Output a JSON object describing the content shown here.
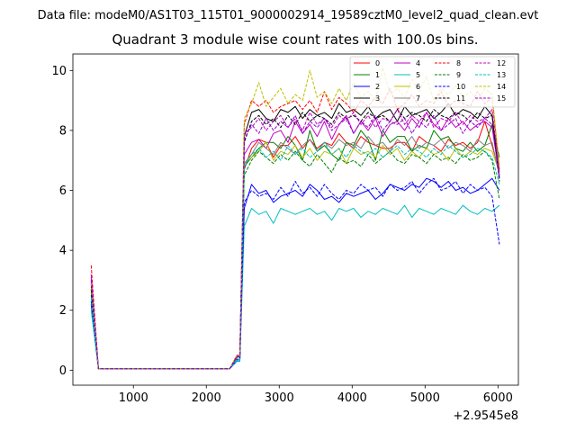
{
  "figure": {
    "suptitle": "Data file: modeM0/AS1T03_115T01_9000002914_19589cztM0_level2_quad_clean.evt"
  },
  "chart_data": {
    "type": "line",
    "title": "Quadrant 3 module wise count rates with 100.0s bins.",
    "xlabel": "",
    "ylabel": "",
    "x_offset_label": "+2.9545e8",
    "xlim": [
      170,
      6280
    ],
    "ylim": [
      -0.5,
      10.55
    ],
    "xticks": [
      1000,
      2000,
      3000,
      4000,
      5000,
      6000
    ],
    "yticks": [
      0,
      2,
      4,
      6,
      8,
      10
    ],
    "grid": false,
    "legend_position": "top-right",
    "x": [
      420,
      520,
      620,
      720,
      820,
      920,
      1020,
      1120,
      1220,
      1320,
      1420,
      1520,
      1620,
      1720,
      1820,
      1920,
      2020,
      2120,
      2220,
      2320,
      2420,
      2460,
      2520,
      2620,
      2720,
      2820,
      2920,
      3020,
      3120,
      3220,
      3320,
      3420,
      3520,
      3620,
      3720,
      3820,
      3920,
      4020,
      4120,
      4220,
      4320,
      4420,
      4520,
      4620,
      4720,
      4820,
      4920,
      5020,
      5120,
      5220,
      5320,
      5420,
      5520,
      5620,
      5720,
      5820,
      5920,
      6020
    ],
    "series": [
      {
        "name": "0",
        "color": "#ff0000",
        "dash": "solid",
        "values": [
          3.0,
          0.05,
          0.05,
          0.05,
          0.05,
          0.05,
          0.05,
          0.05,
          0.05,
          0.05,
          0.05,
          0.05,
          0.05,
          0.05,
          0.05,
          0.05,
          0.05,
          0.05,
          0.05,
          0.05,
          0.45,
          0.45,
          6.7,
          7.4,
          7.7,
          7.6,
          7.1,
          7.5,
          7.5,
          7.8,
          7.4,
          7.7,
          7.4,
          7.6,
          7.5,
          7.9,
          7.6,
          7.4,
          7.8,
          7.6,
          7.5,
          7.4,
          7.4,
          7.6,
          7.6,
          7.3,
          7.8,
          7.6,
          7.5,
          7.3,
          7.7,
          7.5,
          7.6,
          7.4,
          7.6,
          8.3,
          7.5,
          6.6
        ]
      },
      {
        "name": "1",
        "color": "#008000",
        "dash": "solid",
        "values": [
          2.8,
          0.05,
          0.05,
          0.05,
          0.05,
          0.05,
          0.05,
          0.05,
          0.05,
          0.05,
          0.05,
          0.05,
          0.05,
          0.05,
          0.05,
          0.05,
          0.05,
          0.05,
          0.05,
          0.05,
          0.4,
          0.4,
          6.8,
          7.1,
          7.4,
          7.6,
          7.6,
          7.4,
          7.8,
          7.5,
          7.0,
          8.0,
          7.3,
          7.5,
          7.2,
          7.0,
          7.6,
          7.5,
          8.0,
          7.7,
          7.0,
          8.0,
          7.6,
          7.8,
          7.8,
          7.3,
          7.5,
          7.4,
          8.0,
          7.7,
          7.8,
          7.4,
          7.3,
          7.6,
          7.3,
          7.5,
          8.2,
          7.1
        ]
      },
      {
        "name": "2",
        "color": "#0000ff",
        "dash": "solid",
        "values": [
          2.2,
          0.05,
          0.05,
          0.05,
          0.05,
          0.05,
          0.05,
          0.05,
          0.05,
          0.05,
          0.05,
          0.05,
          0.05,
          0.05,
          0.05,
          0.05,
          0.05,
          0.05,
          0.05,
          0.05,
          0.3,
          0.3,
          5.4,
          6.2,
          5.9,
          6.0,
          5.6,
          5.8,
          5.9,
          6.0,
          5.8,
          6.2,
          6.0,
          5.7,
          5.8,
          5.6,
          5.9,
          5.8,
          5.9,
          6.0,
          5.7,
          5.9,
          6.2,
          6.1,
          6.0,
          6.2,
          6.1,
          6.4,
          6.3,
          6.1,
          6.3,
          6.0,
          6.1,
          5.9,
          6.0,
          6.2,
          6.4,
          6.0
        ]
      },
      {
        "name": "3",
        "color": "#000000",
        "dash": "solid",
        "values": [
          2.9,
          0.05,
          0.05,
          0.05,
          0.05,
          0.05,
          0.05,
          0.05,
          0.05,
          0.05,
          0.05,
          0.05,
          0.05,
          0.05,
          0.05,
          0.05,
          0.05,
          0.05,
          0.05,
          0.05,
          0.45,
          0.45,
          7.8,
          8.6,
          8.7,
          8.4,
          8.3,
          8.7,
          8.6,
          8.8,
          8.4,
          8.7,
          8.5,
          8.6,
          8.4,
          8.9,
          8.6,
          8.7,
          8.5,
          8.8,
          8.4,
          8.6,
          8.7,
          8.3,
          8.8,
          8.5,
          8.6,
          8.7,
          8.4,
          8.6,
          8.9,
          8.5,
          8.7,
          8.6,
          8.4,
          8.8,
          8.5,
          6.4
        ]
      },
      {
        "name": "4",
        "color": "#c000c0",
        "dash": "solid",
        "values": [
          3.1,
          0.05,
          0.05,
          0.05,
          0.05,
          0.05,
          0.05,
          0.05,
          0.05,
          0.05,
          0.05,
          0.05,
          0.05,
          0.05,
          0.05,
          0.05,
          0.05,
          0.05,
          0.05,
          0.05,
          0.5,
          0.5,
          7.2,
          7.6,
          7.7,
          7.4,
          7.9,
          8.0,
          7.6,
          8.3,
          7.9,
          8.2,
          7.8,
          8.3,
          7.7,
          8.2,
          8.5,
          7.9,
          8.3,
          8.0,
          8.4,
          7.8,
          8.2,
          8.3,
          8.0,
          8.4,
          8.1,
          8.6,
          8.2,
          8.0,
          8.4,
          8.1,
          8.3,
          8.0,
          8.2,
          8.3,
          8.1,
          6.5
        ]
      },
      {
        "name": "5",
        "color": "#00bfbf",
        "dash": "solid",
        "values": [
          2.0,
          0.05,
          0.05,
          0.05,
          0.05,
          0.05,
          0.05,
          0.05,
          0.05,
          0.05,
          0.05,
          0.05,
          0.05,
          0.05,
          0.05,
          0.05,
          0.05,
          0.05,
          0.05,
          0.05,
          0.3,
          0.3,
          4.8,
          5.4,
          5.2,
          5.3,
          4.9,
          5.4,
          5.3,
          5.2,
          5.3,
          5.4,
          5.2,
          5.3,
          5.0,
          5.4,
          5.3,
          5.4,
          5.1,
          5.3,
          5.2,
          5.4,
          5.3,
          5.2,
          5.5,
          5.1,
          5.4,
          5.3,
          5.2,
          5.4,
          5.3,
          5.2,
          5.5,
          5.3,
          5.2,
          5.4,
          5.3,
          5.5
        ]
      },
      {
        "name": "6",
        "color": "#bfbf00",
        "dash": "solid",
        "values": [
          2.7,
          0.05,
          0.05,
          0.05,
          0.05,
          0.05,
          0.05,
          0.05,
          0.05,
          0.05,
          0.05,
          0.05,
          0.05,
          0.05,
          0.05,
          0.05,
          0.05,
          0.05,
          0.05,
          0.05,
          0.4,
          0.4,
          6.9,
          7.1,
          7.3,
          7.6,
          7.0,
          7.3,
          7.2,
          7.5,
          7.1,
          7.4,
          7.0,
          7.3,
          7.2,
          7.4,
          6.9,
          7.4,
          7.2,
          7.3,
          7.1,
          7.5,
          7.2,
          7.4,
          7.0,
          7.3,
          7.1,
          7.4,
          7.2,
          7.3,
          7.0,
          7.4,
          7.1,
          7.3,
          7.2,
          7.4,
          7.3,
          6.6
        ]
      },
      {
        "name": "7",
        "color": "#808080",
        "dash": "solid",
        "values": [
          2.6,
          0.05,
          0.05,
          0.05,
          0.05,
          0.05,
          0.05,
          0.05,
          0.05,
          0.05,
          0.05,
          0.05,
          0.05,
          0.05,
          0.05,
          0.05,
          0.05,
          0.05,
          0.05,
          0.05,
          0.4,
          0.4,
          6.9,
          7.2,
          7.6,
          7.4,
          7.2,
          7.6,
          7.4,
          7.2,
          7.5,
          7.7,
          7.3,
          7.6,
          7.4,
          7.7,
          7.5,
          7.6,
          7.4,
          7.8,
          7.5,
          7.6,
          7.3,
          7.7,
          7.5,
          7.8,
          7.4,
          7.6,
          7.5,
          7.7,
          7.4,
          7.6,
          7.5,
          7.3,
          7.7,
          7.5,
          7.6,
          6.5
        ]
      },
      {
        "name": "8",
        "color": "#ff0000",
        "dash": "dashed",
        "values": [
          3.5,
          0.05,
          0.05,
          0.05,
          0.05,
          0.05,
          0.05,
          0.05,
          0.05,
          0.05,
          0.05,
          0.05,
          0.05,
          0.05,
          0.05,
          0.05,
          0.05,
          0.05,
          0.05,
          0.05,
          0.5,
          0.5,
          8.2,
          9.0,
          8.8,
          9.0,
          8.6,
          8.8,
          8.9,
          9.0,
          8.7,
          9.0,
          8.6,
          9.3,
          8.7,
          9.1,
          8.9,
          8.6,
          9.0,
          8.8,
          9.1,
          8.9,
          9.4,
          8.7,
          8.9,
          9.2,
          8.8,
          9.0,
          8.9,
          9.3,
          8.8,
          9.0,
          8.9,
          8.8,
          9.3,
          8.9,
          9.1,
          6.7
        ]
      },
      {
        "name": "9",
        "color": "#008000",
        "dash": "dashed",
        "values": [
          2.5,
          0.05,
          0.05,
          0.05,
          0.05,
          0.05,
          0.05,
          0.05,
          0.05,
          0.05,
          0.05,
          0.05,
          0.05,
          0.05,
          0.05,
          0.05,
          0.05,
          0.05,
          0.05,
          0.05,
          0.35,
          0.35,
          6.5,
          7.0,
          7.3,
          7.1,
          6.9,
          7.2,
          7.0,
          7.3,
          7.0,
          6.8,
          7.2,
          6.9,
          6.6,
          7.1,
          6.9,
          7.0,
          6.8,
          7.2,
          6.9,
          7.1,
          7.3,
          7.0,
          6.9,
          7.2,
          7.1,
          6.9,
          7.2,
          7.0,
          7.1,
          6.9,
          7.2,
          7.0,
          7.1,
          7.3,
          7.0,
          5.7
        ]
      },
      {
        "name": "10",
        "color": "#0000ff",
        "dash": "dashed",
        "values": [
          2.3,
          0.05,
          0.05,
          0.05,
          0.05,
          0.05,
          0.05,
          0.05,
          0.05,
          0.05,
          0.05,
          0.05,
          0.05,
          0.05,
          0.05,
          0.05,
          0.05,
          0.05,
          0.05,
          0.05,
          0.35,
          0.35,
          5.6,
          6.0,
          5.8,
          5.9,
          5.7,
          6.1,
          5.8,
          6.3,
          5.9,
          6.1,
          5.8,
          6.2,
          5.9,
          5.7,
          6.0,
          5.9,
          6.2,
          6.0,
          6.1,
          5.8,
          6.2,
          6.0,
          6.1,
          6.3,
          5.9,
          6.2,
          6.4,
          6.0,
          6.1,
          6.3,
          5.9,
          6.2,
          6.0,
          6.1,
          5.8,
          4.2
        ]
      },
      {
        "name": "11",
        "color": "#000000",
        "dash": "dashed",
        "values": [
          2.7,
          0.05,
          0.05,
          0.05,
          0.05,
          0.05,
          0.05,
          0.05,
          0.05,
          0.05,
          0.05,
          0.05,
          0.05,
          0.05,
          0.05,
          0.05,
          0.05,
          0.05,
          0.05,
          0.05,
          0.45,
          0.45,
          7.6,
          8.3,
          8.5,
          8.2,
          8.4,
          8.1,
          8.5,
          8.2,
          8.6,
          8.3,
          8.5,
          8.4,
          8.2,
          8.6,
          8.4,
          8.5,
          8.3,
          8.6,
          8.4,
          8.5,
          8.3,
          8.7,
          8.4,
          8.6,
          8.5,
          8.3,
          8.7,
          8.5,
          8.4,
          8.6,
          8.5,
          8.3,
          8.6,
          8.4,
          8.5,
          6.3
        ]
      },
      {
        "name": "12",
        "color": "#c000c0",
        "dash": "dashed",
        "values": [
          3.2,
          0.05,
          0.05,
          0.05,
          0.05,
          0.05,
          0.05,
          0.05,
          0.05,
          0.05,
          0.05,
          0.05,
          0.05,
          0.05,
          0.05,
          0.05,
          0.05,
          0.05,
          0.05,
          0.05,
          0.5,
          0.5,
          7.9,
          8.1,
          8.4,
          8.0,
          8.3,
          8.5,
          8.1,
          8.4,
          8.0,
          8.6,
          8.2,
          8.4,
          8.1,
          8.5,
          8.3,
          8.6,
          8.2,
          8.5,
          8.1,
          8.4,
          8.3,
          8.7,
          8.2,
          8.5,
          8.3,
          8.6,
          8.1,
          8.4,
          8.3,
          8.6,
          8.2,
          8.5,
          8.3,
          8.4,
          8.7,
          6.6
        ]
      },
      {
        "name": "13",
        "color": "#00bfbf",
        "dash": "dashed",
        "values": [
          2.4,
          0.05,
          0.05,
          0.05,
          0.05,
          0.05,
          0.05,
          0.05,
          0.05,
          0.05,
          0.05,
          0.05,
          0.05,
          0.05,
          0.05,
          0.05,
          0.05,
          0.05,
          0.05,
          0.05,
          0.35,
          0.35,
          6.8,
          7.2,
          7.4,
          7.1,
          7.3,
          7.0,
          7.5,
          7.2,
          7.4,
          7.1,
          7.3,
          7.6,
          7.2,
          7.4,
          7.1,
          7.5,
          7.3,
          7.2,
          7.4,
          7.1,
          7.3,
          7.5,
          7.2,
          7.4,
          7.3,
          7.1,
          7.4,
          7.2,
          7.5,
          7.3,
          7.1,
          7.2,
          7.4,
          7.3,
          7.1,
          6.2
        ]
      },
      {
        "name": "14",
        "color": "#bfbf00",
        "dash": "dashed",
        "values": [
          2.9,
          0.05,
          0.05,
          0.05,
          0.05,
          0.05,
          0.05,
          0.05,
          0.05,
          0.05,
          0.05,
          0.05,
          0.05,
          0.05,
          0.05,
          0.05,
          0.05,
          0.05,
          0.05,
          0.05,
          0.5,
          0.5,
          8.4,
          8.9,
          9.6,
          8.8,
          9.1,
          9.4,
          8.9,
          9.2,
          9.0,
          10.0,
          9.1,
          9.3,
          8.9,
          9.4,
          9.0,
          9.6,
          9.1,
          9.3,
          9.0,
          10.1,
          9.2,
          9.4,
          9.1,
          9.7,
          9.3,
          9.8,
          9.0,
          9.4,
          9.2,
          9.5,
          9.1,
          9.3,
          9.0,
          9.4,
          9.2,
          6.8
        ]
      },
      {
        "name": "15",
        "color": "#9400d3",
        "dash": "dashed",
        "values": [
          3.0,
          0.05,
          0.05,
          0.05,
          0.05,
          0.05,
          0.05,
          0.05,
          0.05,
          0.05,
          0.05,
          0.05,
          0.05,
          0.05,
          0.05,
          0.05,
          0.05,
          0.05,
          0.05,
          0.05,
          0.45,
          0.45,
          7.7,
          8.2,
          7.9,
          8.4,
          8.0,
          8.3,
          8.1,
          8.5,
          7.9,
          8.3,
          8.1,
          8.4,
          8.0,
          8.2,
          8.4,
          7.9,
          8.3,
          8.1,
          8.5,
          8.0,
          8.3,
          8.2,
          8.4,
          7.9,
          8.3,
          8.1,
          8.5,
          8.0,
          8.2,
          8.4,
          7.9,
          8.3,
          8.1,
          8.4,
          8.2,
          6.4
        ]
      }
    ]
  }
}
